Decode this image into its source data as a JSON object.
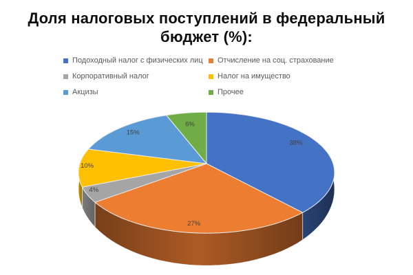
{
  "title_lines": [
    "Доля налоговых поступлений в федеральный",
    "бюджет (%):"
  ],
  "chart_data": {
    "type": "pie",
    "style": "3d-pie",
    "title": "Доля налоговых поступлений в федеральный бюджет (%):",
    "categories": [
      "Подоходный налог с физических лиц",
      "Отчисление на соц. страхование",
      "Корпоративный налог",
      "Налог на имущество",
      "Акцизы",
      "Прочее"
    ],
    "values": [
      38,
      27,
      4,
      10,
      15,
      6
    ],
    "labels": [
      "38%",
      "27%",
      "4%",
      "10%",
      "15%",
      "6%"
    ],
    "colors": [
      "#4472C4",
      "#ED7D31",
      "#A5A5A5",
      "#FFC000",
      "#5B9BD5",
      "#70AD47"
    ],
    "legend_position": "top",
    "legend_columns": 2,
    "start_angle_deg": -90,
    "direction": "clockwise",
    "label_color": "#3f3f3f",
    "legend_text_color": "#595959"
  }
}
